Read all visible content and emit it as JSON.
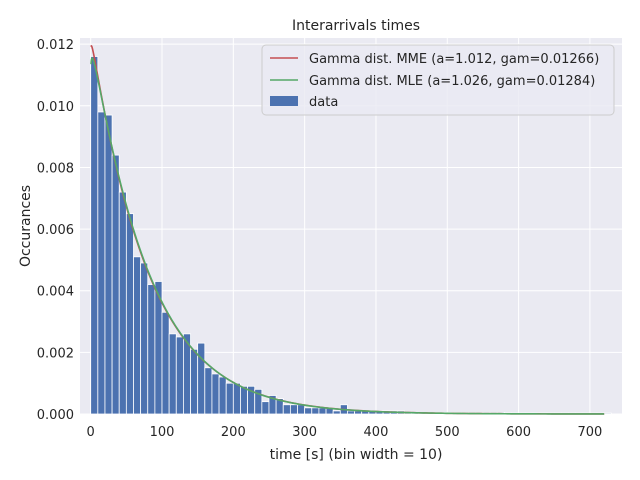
{
  "chart_data": {
    "type": "bar",
    "title": "Interarrivals times",
    "xlabel": "time [s] (bin width = 10)",
    "ylabel": "Occurances",
    "xlim": [
      -15,
      745
    ],
    "ylim": [
      0,
      0.0122
    ],
    "xticks": [
      0,
      100,
      200,
      300,
      400,
      500,
      600,
      700
    ],
    "xtick_labels": [
      "0",
      "100",
      "200",
      "300",
      "400",
      "500",
      "600",
      "700"
    ],
    "yticks": [
      0,
      0.002,
      0.004,
      0.006,
      0.008,
      0.01,
      0.012
    ],
    "ytick_labels": [
      "0.000",
      "0.002",
      "0.004",
      "0.006",
      "0.008",
      "0.010",
      "0.012"
    ],
    "grid": true,
    "legend_position": "top-right",
    "bin_width": 10,
    "histogram": {
      "name": "data",
      "color": "#4c72b0",
      "bin_starts": [
        0,
        10,
        20,
        30,
        40,
        50,
        60,
        70,
        80,
        90,
        100,
        110,
        120,
        130,
        140,
        150,
        160,
        170,
        180,
        190,
        200,
        210,
        220,
        230,
        240,
        250,
        260,
        270,
        280,
        290,
        300,
        310,
        320,
        330,
        340,
        350,
        360,
        370,
        380,
        390,
        400,
        410,
        420,
        430,
        440,
        450,
        460,
        470,
        480,
        490,
        500,
        510,
        520,
        530,
        540,
        550,
        560,
        570,
        580,
        590,
        600,
        610,
        620,
        630,
        640,
        650,
        660,
        670,
        680,
        690,
        700,
        710,
        720
      ],
      "values": [
        0.0116,
        0.0098,
        0.0097,
        0.0084,
        0.0072,
        0.0065,
        0.0051,
        0.0049,
        0.0042,
        0.0043,
        0.0033,
        0.0026,
        0.0025,
        0.0026,
        0.0021,
        0.0023,
        0.0015,
        0.0013,
        0.0012,
        0.001,
        0.001,
        0.0009,
        0.0009,
        0.0008,
        0.0004,
        0.0006,
        0.0005,
        0.0003,
        0.0003,
        0.0003,
        0.0002,
        0.0002,
        0.0002,
        0.0002,
        0.0001,
        0.0003,
        0.0001,
        0.0001,
        0.0001,
        0.0001,
        0.0001,
        0.0001,
        0.0001,
        0.0001,
        5e-05,
        5e-05,
        5e-05,
        5e-05,
        5e-05,
        5e-05,
        5e-05,
        5e-05,
        5e-05,
        5e-05,
        5e-05,
        5e-05,
        5e-05,
        5e-05,
        3e-05,
        3e-05,
        3e-05,
        3e-05,
        3e-05,
        3e-05,
        3e-05,
        3e-05,
        3e-05,
        3e-05,
        3e-05,
        3e-05,
        3e-05,
        3e-05,
        3e-05
      ]
    },
    "series": [
      {
        "name": "Gamma dist. MME (a=1.012, gam=0.01266)",
        "color": "#c44e52",
        "shape": 1.012,
        "rate": 0.01266
      },
      {
        "name": "Gamma dist. MLE (a=1.026, gam=0.01284)",
        "color": "#55a868",
        "shape": 1.026,
        "rate": 0.01284
      }
    ],
    "curve_x_range": [
      0.5,
      720
    ]
  }
}
